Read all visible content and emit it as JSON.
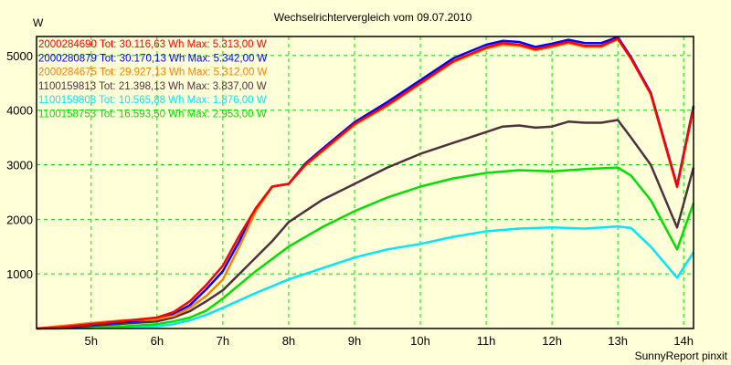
{
  "chart_data": {
    "type": "line",
    "title": "Wechselrichtervergleich vom 09.07.2010",
    "ylabel": "W",
    "xlabel": "",
    "footer": "SunnyReport pinxit",
    "xlim": [
      4.17,
      14.15
    ],
    "ylim": [
      0,
      5350
    ],
    "grid": true,
    "legend_position": "top-left",
    "x_ticks": [
      {
        "value": 5,
        "label": "5h"
      },
      {
        "value": 6,
        "label": "6h"
      },
      {
        "value": 7,
        "label": "7h"
      },
      {
        "value": 8,
        "label": "8h"
      },
      {
        "value": 9,
        "label": "9h"
      },
      {
        "value": 10,
        "label": "10h"
      },
      {
        "value": 11,
        "label": "11h"
      },
      {
        "value": 12,
        "label": "12h"
      },
      {
        "value": 13,
        "label": "13h"
      },
      {
        "value": 14,
        "label": "14h"
      }
    ],
    "y_ticks": [
      {
        "value": 1000,
        "label": "1000"
      },
      {
        "value": 2000,
        "label": "2000"
      },
      {
        "value": 3000,
        "label": "3000"
      },
      {
        "value": 4000,
        "label": "4000"
      },
      {
        "value": 5000,
        "label": "5000"
      }
    ],
    "series": [
      {
        "name": "2000284690",
        "legend": "2000284690 Tot: 30.116,63 Wh Max: 5.313,00 W",
        "color": "#ff0000",
        "x": [
          4.17,
          4.5,
          5,
          5.5,
          6,
          6.25,
          6.5,
          6.75,
          7,
          7.25,
          7.5,
          7.75,
          8,
          8.25,
          8.5,
          9,
          9.5,
          10,
          10.5,
          11,
          11.25,
          11.5,
          11.75,
          12,
          12.25,
          12.5,
          12.75,
          13,
          13.2,
          13.5,
          13.9,
          14.15
        ],
        "y": [
          0,
          20,
          80,
          140,
          200,
          300,
          500,
          800,
          1150,
          1700,
          2200,
          2600,
          2650,
          3000,
          3250,
          3750,
          4100,
          4500,
          4900,
          5150,
          5230,
          5200,
          5120,
          5180,
          5250,
          5180,
          5180,
          5310,
          4950,
          4300,
          2600,
          4050
        ]
      },
      {
        "name": "2000280879",
        "legend": "2000280879 Tot: 30.170,13 Wh Max: 5.342,00 W",
        "color": "#0000ff",
        "x": [
          4.17,
          4.5,
          5,
          5.5,
          6,
          6.25,
          6.5,
          6.75,
          7,
          7.25,
          7.5,
          7.75,
          8,
          8.25,
          8.5,
          9,
          9.5,
          10,
          10.5,
          11,
          11.25,
          11.5,
          11.75,
          12,
          12.25,
          12.5,
          12.75,
          13,
          13.2,
          13.5,
          13.9,
          14.15
        ],
        "y": [
          0,
          20,
          70,
          120,
          180,
          260,
          430,
          720,
          1050,
          1600,
          2200,
          2600,
          2650,
          3020,
          3280,
          3780,
          4150,
          4550,
          4950,
          5200,
          5270,
          5250,
          5160,
          5220,
          5290,
          5230,
          5230,
          5340,
          4970,
          4320,
          2620,
          4080
        ]
      },
      {
        "name": "2000284675",
        "legend": "2000284675 Tot: 29.927,13 Wh Max: 5.312,00 W",
        "color": "#ff8000",
        "x": [
          4.17,
          4.5,
          5,
          5.5,
          6,
          6.25,
          6.5,
          6.75,
          7,
          7.25,
          7.5,
          7.75,
          8,
          8.25,
          8.5,
          9,
          9.5,
          10,
          10.5,
          11,
          11.25,
          11.5,
          11.75,
          12,
          12.25,
          12.5,
          12.75,
          13,
          13.2,
          13.5,
          13.9,
          14.15
        ],
        "y": [
          0,
          40,
          100,
          150,
          170,
          230,
          380,
          600,
          900,
          1500,
          2150,
          2600,
          2650,
          2980,
          3230,
          3730,
          4080,
          4480,
          4880,
          5130,
          5200,
          5180,
          5100,
          5160,
          5230,
          5160,
          5160,
          5300,
          4940,
          4290,
          2590,
          4040
        ]
      },
      {
        "name": "1100159813",
        "legend": "1100159813 Tot: 21.398,13 Wh Max: 3.837,00 W",
        "color": "#503040",
        "x": [
          4.17,
          4.5,
          5,
          5.5,
          6,
          6.25,
          6.5,
          6.75,
          7,
          7.25,
          7.5,
          7.75,
          8,
          8.5,
          9,
          9.5,
          10,
          10.5,
          11,
          11.25,
          11.5,
          11.75,
          12,
          12.25,
          12.5,
          12.75,
          13,
          13.2,
          13.5,
          13.9,
          14.15
        ],
        "y": [
          0,
          10,
          50,
          90,
          130,
          200,
          320,
          500,
          700,
          1000,
          1300,
          1600,
          1950,
          2350,
          2650,
          2950,
          3200,
          3400,
          3600,
          3700,
          3720,
          3680,
          3700,
          3790,
          3770,
          3770,
          3820,
          3500,
          3000,
          1850,
          2950
        ]
      },
      {
        "name": "1100159808",
        "legend": "1100159808 Tot: 10.565,88 Wh Max: 1.876,00 W",
        "color": "#00e8f8",
        "x": [
          4.17,
          4.5,
          5,
          5.5,
          6,
          6.25,
          6.5,
          6.75,
          7,
          7.5,
          8,
          8.5,
          9,
          9.5,
          10,
          10.5,
          11,
          11.5,
          12,
          12.5,
          13,
          13.2,
          13.5,
          13.9,
          14.15
        ],
        "y": [
          0,
          0,
          10,
          20,
          40,
          80,
          150,
          250,
          380,
          650,
          900,
          1100,
          1300,
          1450,
          1550,
          1680,
          1780,
          1830,
          1850,
          1830,
          1870,
          1840,
          1500,
          930,
          1400
        ]
      },
      {
        "name": "1100158753",
        "legend": "1100158753 Tot: 16.593,50 Wh Max: 2.953,00 W",
        "color": "#00e000",
        "x": [
          4.17,
          4.5,
          5,
          5.5,
          6,
          6.25,
          6.5,
          6.75,
          7,
          7.25,
          7.5,
          8,
          8.5,
          9,
          9.5,
          10,
          10.5,
          11,
          11.5,
          12,
          12.5,
          13,
          13.2,
          13.5,
          13.9,
          14.15
        ],
        "y": [
          0,
          0,
          20,
          40,
          80,
          130,
          200,
          330,
          550,
          800,
          1050,
          1500,
          1850,
          2150,
          2400,
          2600,
          2750,
          2850,
          2900,
          2880,
          2920,
          2950,
          2800,
          2350,
          1450,
          2300
        ]
      }
    ]
  }
}
